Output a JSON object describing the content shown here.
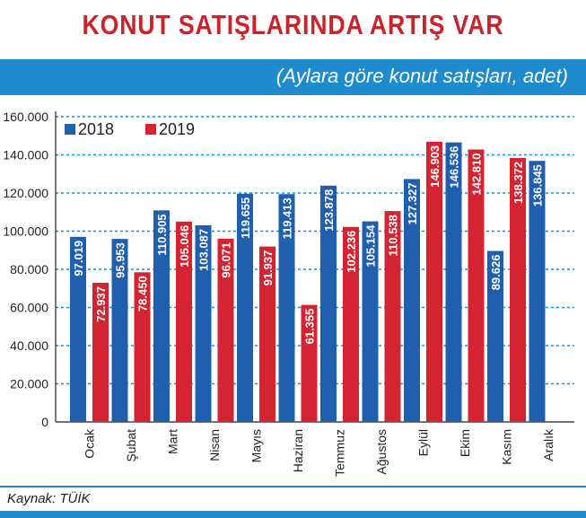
{
  "title": "KONUT SATIŞLARINDA ARTIŞ VAR",
  "subtitle": "(Aylara göre konut satışları, adet)",
  "source": "Kaynak: TÜİK",
  "colors": {
    "accent": "#1e8bcc",
    "title": "#cc2229",
    "series_2018": "#1f5fad",
    "series_2019": "#d42331"
  },
  "chart_data": {
    "type": "bar",
    "categories": [
      "Ocak",
      "Şubat",
      "Mart",
      "Nisan",
      "Mayıs",
      "Haziran",
      "Temmuz",
      "Ağustos",
      "Eylül",
      "Ekim",
      "Kasım",
      "Aralık"
    ],
    "series": [
      {
        "name": "2018",
        "color": "#1f5fad",
        "values": [
          97019,
          95953,
          110905,
          103087,
          119655,
          119413,
          123878,
          105154,
          127327,
          146536,
          89626,
          136845
        ],
        "labels": [
          "97.019",
          "95.953",
          "110.905",
          "103.087",
          "119.655",
          "119.413",
          "123.878",
          "105.154",
          "127.327",
          "146.536",
          "89.626",
          "136.845"
        ]
      },
      {
        "name": "2019",
        "color": "#d42331",
        "values": [
          72937,
          78450,
          105046,
          96071,
          91937,
          61355,
          102236,
          110538,
          146903,
          142810,
          138372,
          null
        ],
        "labels": [
          "72.937",
          "78.450",
          "105.046",
          "96.071",
          "91.937",
          "61.355",
          "102.236",
          "110.538",
          "146.903",
          "142.810",
          "138.372",
          null
        ]
      }
    ],
    "yticks": [
      0,
      20000,
      40000,
      60000,
      80000,
      100000,
      120000,
      140000,
      160000
    ],
    "ytick_labels": [
      "0",
      "20.000",
      "40.000",
      "60.000",
      "80.000",
      "100.000",
      "120.000",
      "140.000",
      "160.000"
    ],
    "ylim": [
      0,
      160000
    ],
    "grid": true,
    "legend": "top-left"
  }
}
